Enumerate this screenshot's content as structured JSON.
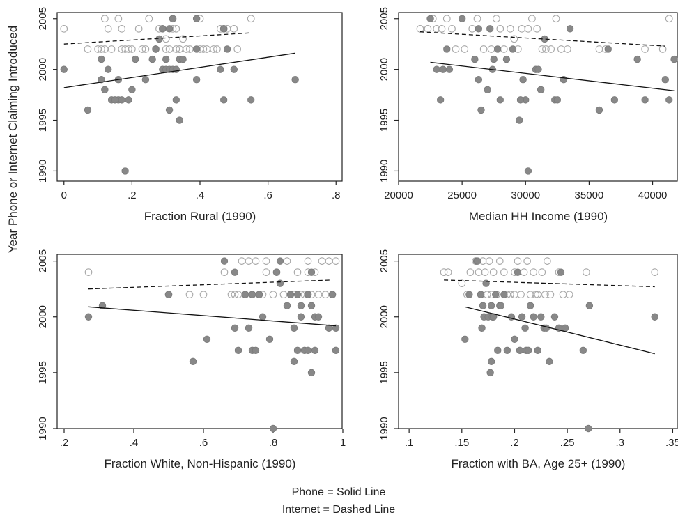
{
  "figure": {
    "ylabel": "Year Phone or Internet Claiming Introduced",
    "legend": [
      "Phone = Solid Line",
      "Internet = Dashed Line"
    ]
  },
  "chart_data": [
    {
      "type": "scatter",
      "xlabel": "Fraction Rural (1990)",
      "xlim": [
        -0.02,
        0.82
      ],
      "ylim": [
        1989,
        2005.6
      ],
      "xticks": [
        0,
        0.2,
        0.4,
        0.6,
        0.8
      ],
      "xtick_labels": [
        "0",
        ".2",
        ".4",
        ".6",
        ".8"
      ],
      "yticks": [
        1990,
        1995,
        2000,
        2005
      ],
      "ytick_labels": [
        "1990",
        "1995",
        "2000",
        "2005"
      ],
      "series": [
        {
          "style": "filled",
          "x": [
            0.0,
            0.07,
            0.11,
            0.11,
            0.12,
            0.13,
            0.14,
            0.16,
            0.16,
            0.17,
            0.18,
            0.19,
            0.2,
            0.21,
            0.24,
            0.26,
            0.27,
            0.28,
            0.29,
            0.3,
            0.3,
            0.31,
            0.31,
            0.32,
            0.33,
            0.33,
            0.34,
            0.34,
            0.35,
            0.39,
            0.39,
            0.46,
            0.47,
            0.48,
            0.5,
            0.55,
            0.68,
            0.31,
            0.29,
            0.32,
            0.39,
            0.47,
            0.27,
            0.15
          ],
          "y": [
            2000,
            1996,
            1999,
            2001,
            1998,
            2000,
            1997,
            1997,
            1999,
            1997,
            1990,
            1997,
            1998,
            2001,
            1999,
            2001,
            2002,
            2003,
            2000,
            2000,
            2001,
            2000,
            1996,
            2000,
            1997,
            2000,
            2001,
            1995,
            2001,
            2002,
            1999,
            2000,
            1997,
            2002,
            2000,
            1997,
            1999,
            2004,
            2004,
            2005,
            2005,
            2004,
            2002,
            1997
          ]
        },
        {
          "style": "hollow",
          "x": [
            0.0,
            0.07,
            0.1,
            0.11,
            0.12,
            0.13,
            0.14,
            0.16,
            0.17,
            0.18,
            0.19,
            0.2,
            0.22,
            0.23,
            0.24,
            0.25,
            0.27,
            0.28,
            0.29,
            0.3,
            0.3,
            0.31,
            0.32,
            0.32,
            0.33,
            0.33,
            0.34,
            0.35,
            0.36,
            0.37,
            0.4,
            0.41,
            0.42,
            0.44,
            0.45,
            0.46,
            0.47,
            0.48,
            0.5,
            0.51,
            0.55,
            0.12,
            0.17,
            0.34,
            0.4
          ],
          "y": [
            2004,
            2002,
            2002,
            2002,
            2005,
            2004,
            2002,
            2005,
            2004,
            2002,
            2002,
            2002,
            2004,
            2002,
            2002,
            2005,
            2002,
            2004,
            2004,
            2002,
            2003,
            2002,
            2005,
            2004,
            2004,
            2002,
            2002,
            2003,
            2002,
            2002,
            2005,
            2002,
            2002,
            2002,
            2002,
            2004,
            2004,
            2004,
            2004,
            2002,
            2005,
            2002,
            2002,
            2002,
            2002
          ]
        }
      ],
      "fit_lines": [
        {
          "style": "solid",
          "x": [
            0.0,
            0.68
          ],
          "y": [
            1998.2,
            2001.6
          ]
        },
        {
          "style": "dashed",
          "x": [
            0.0,
            0.55
          ],
          "y": [
            2002.5,
            2003.6
          ]
        }
      ]
    },
    {
      "type": "scatter",
      "xlabel": "Median HH Income (1990)",
      "xlim": [
        20000,
        42000
      ],
      "ylim": [
        1989,
        2005.6
      ],
      "xticks": [
        20000,
        25000,
        30000,
        35000,
        40000
      ],
      "xtick_labels": [
        "20000",
        "25000",
        "30000",
        "35000",
        "40000"
      ],
      "yticks": [
        1990,
        1995,
        2000,
        2005
      ],
      "ytick_labels": [
        "1990",
        "1995",
        "2000",
        "2005"
      ],
      "series": [
        {
          "style": "filled",
          "x": [
            22500,
            23000,
            23300,
            23500,
            23800,
            24000,
            25000,
            26000,
            26300,
            26500,
            27000,
            27200,
            27500,
            27800,
            28000,
            28500,
            29000,
            29500,
            29800,
            30000,
            30200,
            30800,
            31000,
            31200,
            31500,
            32300,
            32500,
            33000,
            33500,
            35800,
            37000,
            38800,
            39400,
            41000,
            41300,
            41700,
            26300,
            27400,
            29600,
            36500
          ],
          "y": [
            2005,
            2000,
            1997,
            2000,
            2002,
            2000,
            2005,
            2001,
            2004,
            1996,
            1998,
            2004,
            2001,
            2002,
            1997,
            2001,
            2002,
            1995,
            1999,
            1997,
            1990,
            2000,
            2000,
            1998,
            2003,
            1997,
            1997,
            1999,
            2004,
            1996,
            1997,
            2001,
            1997,
            1999,
            1997,
            2001,
            1999,
            2000,
            1997,
            2002
          ]
        },
        {
          "style": "hollow",
          "x": [
            21700,
            22300,
            22700,
            23000,
            23400,
            23800,
            24200,
            25200,
            25800,
            26200,
            26700,
            27300,
            27700,
            28000,
            28800,
            29100,
            29400,
            29700,
            30200,
            30500,
            30900,
            31300,
            31600,
            32000,
            32400,
            32800,
            33300,
            35800,
            36300,
            39400,
            40800,
            41300,
            24500,
            28300
          ],
          "y": [
            2004,
            2004,
            2005,
            2004,
            2004,
            2005,
            2004,
            2002,
            2004,
            2005,
            2002,
            2002,
            2005,
            2004,
            2004,
            2003,
            2002,
            2004,
            2004,
            2005,
            2004,
            2002,
            2002,
            2002,
            2005,
            2002,
            2002,
            2002,
            2002,
            2002,
            2002,
            2005,
            2002,
            2002
          ]
        }
      ],
      "fit_lines": [
        {
          "style": "solid",
          "x": [
            22500,
            41700
          ],
          "y": [
            2000.7,
            1997.9
          ]
        },
        {
          "style": "dashed",
          "x": [
            21700,
            41000
          ],
          "y": [
            2003.7,
            2002.3
          ]
        }
      ]
    },
    {
      "type": "scatter",
      "xlabel": "Fraction White, Non-Hispanic (1990)",
      "xlim": [
        0.18,
        1.0
      ],
      "ylim": [
        1990,
        2005.6
      ],
      "xticks": [
        0.2,
        0.4,
        0.6,
        0.8,
        1.0
      ],
      "xtick_labels": [
        ".2",
        ".4",
        ".6",
        ".8",
        "1"
      ],
      "yticks": [
        1990,
        1995,
        2000,
        2005
      ],
      "ytick_labels": [
        "1990",
        "1995",
        "2000",
        "2005"
      ],
      "series": [
        {
          "style": "filled",
          "x": [
            0.27,
            0.31,
            0.5,
            0.57,
            0.61,
            0.66,
            0.69,
            0.69,
            0.7,
            0.72,
            0.73,
            0.74,
            0.74,
            0.75,
            0.77,
            0.79,
            0.8,
            0.81,
            0.82,
            0.82,
            0.84,
            0.85,
            0.86,
            0.86,
            0.87,
            0.87,
            0.88,
            0.88,
            0.89,
            0.9,
            0.9,
            0.91,
            0.91,
            0.92,
            0.92,
            0.93,
            0.96,
            0.97,
            0.98,
            0.98,
            0.91,
            0.76
          ],
          "y": [
            2000,
            2001,
            2002,
            1996,
            1998,
            2005,
            2004,
            1999,
            1997,
            2002,
            1999,
            1997,
            2002,
            1997,
            2000,
            1998,
            1990,
            2004,
            2005,
            2003,
            2001,
            2002,
            1999,
            1996,
            1997,
            2002,
            2000,
            2001,
            1997,
            2002,
            1997,
            1995,
            2001,
            2000,
            1997,
            2000,
            1999,
            2002,
            1999,
            1997,
            2004,
            2002
          ]
        },
        {
          "style": "hollow",
          "x": [
            0.27,
            0.5,
            0.56,
            0.6,
            0.66,
            0.68,
            0.69,
            0.7,
            0.71,
            0.72,
            0.73,
            0.74,
            0.75,
            0.76,
            0.77,
            0.78,
            0.8,
            0.81,
            0.83,
            0.84,
            0.85,
            0.86,
            0.87,
            0.88,
            0.89,
            0.9,
            0.9,
            0.91,
            0.92,
            0.93,
            0.94,
            0.95,
            0.96,
            0.97,
            0.98,
            0.78,
            0.9
          ],
          "y": [
            2004,
            2002,
            2002,
            2002,
            2004,
            2002,
            2002,
            2002,
            2005,
            2002,
            2005,
            2002,
            2005,
            2002,
            2002,
            2004,
            2002,
            2004,
            2002,
            2005,
            2002,
            2002,
            2004,
            2002,
            2002,
            2002,
            2005,
            2002,
            2004,
            2002,
            2005,
            2002,
            2005,
            2002,
            2005,
            2005,
            2004
          ]
        }
      ],
      "fit_lines": [
        {
          "style": "solid",
          "x": [
            0.27,
            0.98
          ],
          "y": [
            2000.9,
            1999.2
          ]
        },
        {
          "style": "dashed",
          "x": [
            0.27,
            0.97
          ],
          "y": [
            2002.5,
            2003.3
          ]
        }
      ]
    },
    {
      "type": "scatter",
      "xlabel": "Fraction with BA, Age 25+ (1990)",
      "xlim": [
        0.09,
        0.355
      ],
      "ylim": [
        1990,
        2005.6
      ],
      "xticks": [
        0.1,
        0.15,
        0.2,
        0.25,
        0.3,
        0.35
      ],
      "xtick_labels": [
        ".1",
        ".15",
        ".2",
        ".25",
        ".3",
        ".35"
      ],
      "yticks": [
        1990,
        1995,
        2000,
        2005
      ],
      "ytick_labels": [
        "1990",
        "1995",
        "2000",
        "2005"
      ],
      "series": [
        {
          "style": "filled",
          "x": [
            0.153,
            0.157,
            0.164,
            0.165,
            0.168,
            0.169,
            0.17,
            0.171,
            0.173,
            0.175,
            0.177,
            0.178,
            0.178,
            0.179,
            0.18,
            0.182,
            0.184,
            0.186,
            0.187,
            0.19,
            0.193,
            0.197,
            0.2,
            0.203,
            0.205,
            0.207,
            0.21,
            0.211,
            0.213,
            0.215,
            0.218,
            0.222,
            0.225,
            0.228,
            0.23,
            0.233,
            0.238,
            0.242,
            0.244,
            0.248,
            0.265,
            0.27,
            0.271,
            0.333
          ],
          "y": [
            1998,
            2002,
            2005,
            2005,
            2002,
            1999,
            2001,
            2000,
            2003,
            2000,
            1995,
            1996,
            2001,
            2000,
            2000,
            2002,
            1997,
            2001,
            2001,
            2002,
            1997,
            2000,
            1998,
            2004,
            1997,
            2000,
            1999,
            1997,
            1997,
            2001,
            2000,
            1997,
            2000,
            1999,
            1999,
            1996,
            2000,
            1999,
            2004,
            1999,
            1997,
            1990,
            2001,
            2000
          ]
        },
        {
          "style": "hollow",
          "x": [
            0.133,
            0.137,
            0.15,
            0.155,
            0.158,
            0.163,
            0.166,
            0.168,
            0.17,
            0.172,
            0.174,
            0.176,
            0.178,
            0.18,
            0.183,
            0.186,
            0.19,
            0.193,
            0.196,
            0.2,
            0.203,
            0.206,
            0.209,
            0.212,
            0.215,
            0.218,
            0.222,
            0.226,
            0.229,
            0.231,
            0.234,
            0.242,
            0.246,
            0.252,
            0.268,
            0.333,
            0.2,
            0.22
          ],
          "y": [
            2004,
            2004,
            2003,
            2002,
            2004,
            2005,
            2004,
            2002,
            2005,
            2004,
            2002,
            2005,
            2002,
            2004,
            2002,
            2005,
            2004,
            2002,
            2002,
            2004,
            2005,
            2002,
            2004,
            2005,
            2002,
            2004,
            2002,
            2004,
            2002,
            2005,
            2002,
            2004,
            2002,
            2002,
            2004,
            2004,
            2002,
            2002
          ]
        }
      ],
      "fit_lines": [
        {
          "style": "solid",
          "x": [
            0.153,
            0.333
          ],
          "y": [
            2000.9,
            1996.7
          ]
        },
        {
          "style": "dashed",
          "x": [
            0.133,
            0.333
          ],
          "y": [
            2003.3,
            2002.7
          ]
        }
      ]
    }
  ]
}
